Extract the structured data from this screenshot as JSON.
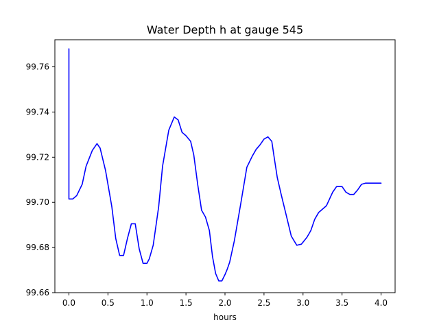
{
  "chart_data": {
    "type": "line",
    "title": "Water Depth h at gauge 545",
    "xlabel": "hours",
    "ylabel": "",
    "xlim": [
      -0.18,
      4.18
    ],
    "ylim": [
      99.66,
      99.772
    ],
    "grid": false,
    "xticks": [
      0.0,
      0.5,
      1.0,
      1.5,
      2.0,
      2.5,
      3.0,
      3.5,
      4.0
    ],
    "xtick_labels": [
      "0.0",
      "0.5",
      "1.0",
      "1.5",
      "2.0",
      "2.5",
      "3.0",
      "3.5",
      "4.0"
    ],
    "yticks": [
      99.66,
      99.68,
      99.7,
      99.72,
      99.74,
      99.76
    ],
    "ytick_labels": [
      "99.66",
      "99.68",
      "99.70",
      "99.72",
      "99.74",
      "99.76"
    ],
    "series": [
      {
        "color": "#0000ff",
        "x": [
          0.0,
          0.0,
          0.0,
          0.05,
          0.1,
          0.17,
          0.22,
          0.3,
          0.36,
          0.4,
          0.47,
          0.55,
          0.6,
          0.65,
          0.7,
          0.75,
          0.8,
          0.85,
          0.9,
          0.95,
          1.0,
          1.03,
          1.08,
          1.15,
          1.2,
          1.28,
          1.35,
          1.4,
          1.45,
          1.5,
          1.56,
          1.6,
          1.65,
          1.7,
          1.75,
          1.8,
          1.84,
          1.88,
          1.92,
          1.96,
          2.0,
          2.03,
          2.06,
          2.12,
          2.2,
          2.28,
          2.35,
          2.4,
          2.45,
          2.5,
          2.55,
          2.6,
          2.63,
          2.67,
          2.72,
          2.78,
          2.85,
          2.92,
          2.98,
          3.05,
          3.1,
          3.15,
          3.2,
          3.25,
          3.3,
          3.38,
          3.43,
          3.5,
          3.55,
          3.6,
          3.65,
          3.7,
          3.75,
          3.8,
          3.85,
          3.9,
          3.96,
          4.0
        ],
        "y": [
          99.768,
          99.73,
          99.7015,
          99.7015,
          99.703,
          99.708,
          99.716,
          99.723,
          99.726,
          99.724,
          99.714,
          99.698,
          99.684,
          99.6765,
          99.6765,
          99.684,
          99.6905,
          99.6905,
          99.6795,
          99.673,
          99.673,
          99.675,
          99.681,
          99.698,
          99.716,
          99.732,
          99.7378,
          99.7365,
          99.731,
          99.7295,
          99.727,
          99.721,
          99.708,
          99.6965,
          99.6935,
          99.6875,
          99.676,
          99.6685,
          99.6652,
          99.6652,
          99.668,
          99.6705,
          99.6735,
          99.683,
          99.699,
          99.7155,
          99.7205,
          99.7235,
          99.7255,
          99.728,
          99.729,
          99.727,
          99.72,
          99.711,
          99.7035,
          99.695,
          99.685,
          99.681,
          99.6815,
          99.6845,
          99.6875,
          99.6925,
          99.6955,
          99.697,
          99.6985,
          99.7045,
          99.707,
          99.707,
          99.7045,
          99.7035,
          99.7035,
          99.7055,
          99.708,
          99.7085,
          99.7085,
          99.7085,
          99.7085,
          99.7085
        ]
      }
    ]
  }
}
